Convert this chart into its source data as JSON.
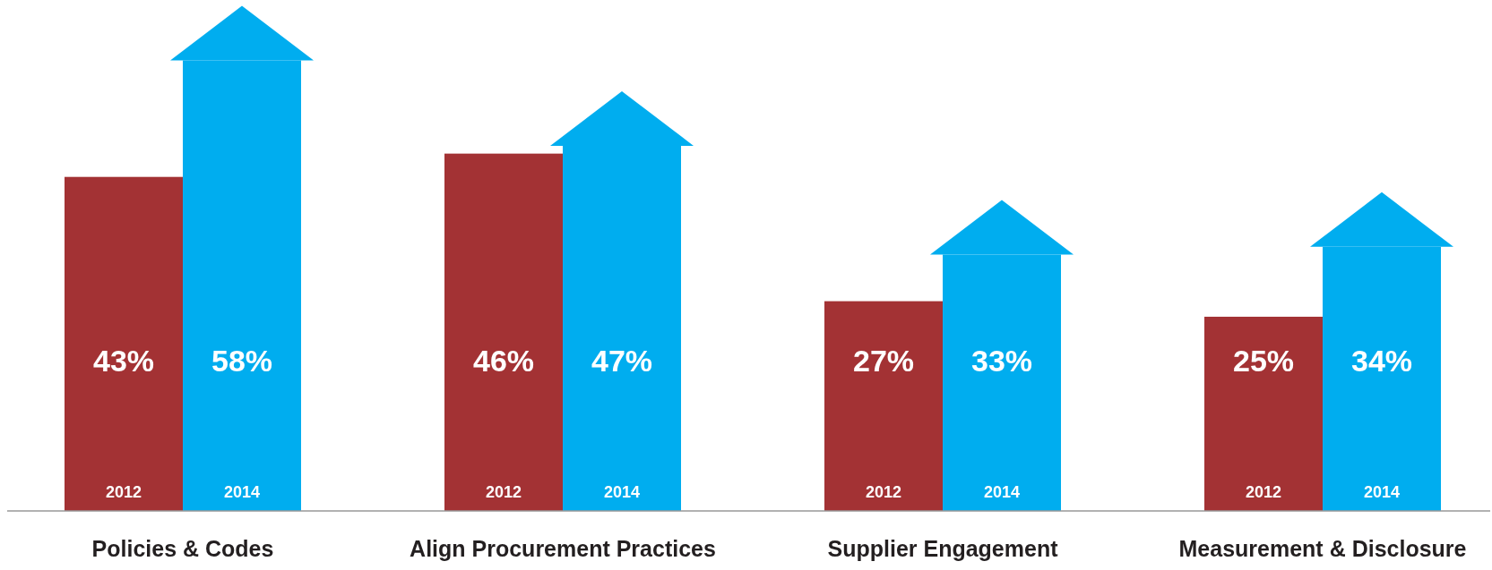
{
  "chart_data": {
    "type": "bar",
    "categories": [
      "Policies & Codes",
      "Align Procurement Practices",
      "Supplier Engagement",
      "Measurement & Disclosure"
    ],
    "series": [
      {
        "name": "2012",
        "color": "#a33234",
        "values": [
          43,
          46,
          27,
          25
        ],
        "value_labels": [
          "43%",
          "46%",
          "27%",
          "25%"
        ]
      },
      {
        "name": "2014",
        "color": "#00adef",
        "values": [
          58,
          47,
          33,
          34
        ],
        "value_labels": [
          "58%",
          "47%",
          "33%",
          "34%"
        ]
      }
    ]
  }
}
